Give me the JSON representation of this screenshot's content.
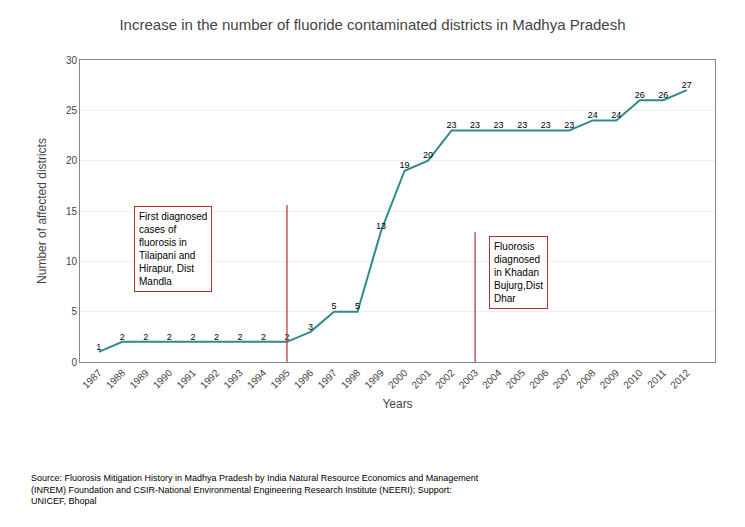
{
  "chart_data": {
    "type": "line",
    "title": "Increase in the number of fluoride contaminated districts in Madhya Pradesh",
    "xlabel": "Years",
    "ylabel": "Number of affected districts",
    "x": [
      1987,
      1988,
      1989,
      1990,
      1991,
      1992,
      1993,
      1994,
      1995,
      1996,
      1997,
      1998,
      1999,
      2000,
      2001,
      2002,
      2003,
      2004,
      2005,
      2006,
      2007,
      2008,
      2009,
      2010,
      2011,
      2012
    ],
    "values": [
      1,
      2,
      2,
      2,
      2,
      2,
      2,
      2,
      2,
      3,
      5,
      5,
      13,
      19,
      20,
      23,
      23,
      23,
      23,
      23,
      23,
      24,
      24,
      26,
      26,
      27
    ],
    "color": "#2e8b8b",
    "xlim": [
      1986.2,
      2013.2
    ],
    "xticks": [
      1987,
      1988,
      1989,
      1990,
      1991,
      1992,
      1993,
      1994,
      1995,
      1996,
      1997,
      1998,
      1999,
      2000,
      2001,
      2002,
      2003,
      2004,
      2005,
      2006,
      2007,
      2008,
      2009,
      2010,
      2011,
      2012
    ],
    "ylim": [
      0,
      30
    ],
    "yticks": [
      0,
      5,
      10,
      15,
      20,
      25,
      30
    ],
    "grid": true,
    "data_labels": true,
    "annotations": [
      {
        "text": "First diagnosed\ncases of\nfluorosis in\nTilaipani and\nHirapur, Dist\nMandla",
        "x": 1995,
        "color": "#b03030"
      },
      {
        "text": "Fluorosis\ndiagnosed\nin Khadan\nBujurg,Dist\nDhar",
        "x": 2003,
        "color": "#b03030"
      }
    ],
    "source": "Source: Fluorosis Mitigation History in Madhya Pradesh by India Natural Resource Economics and Management\n(INREM) Foundation and CSIR-National Environmental Engineering Research Institute (NEERI); Support:\nUNICEF, Bhopal"
  }
}
